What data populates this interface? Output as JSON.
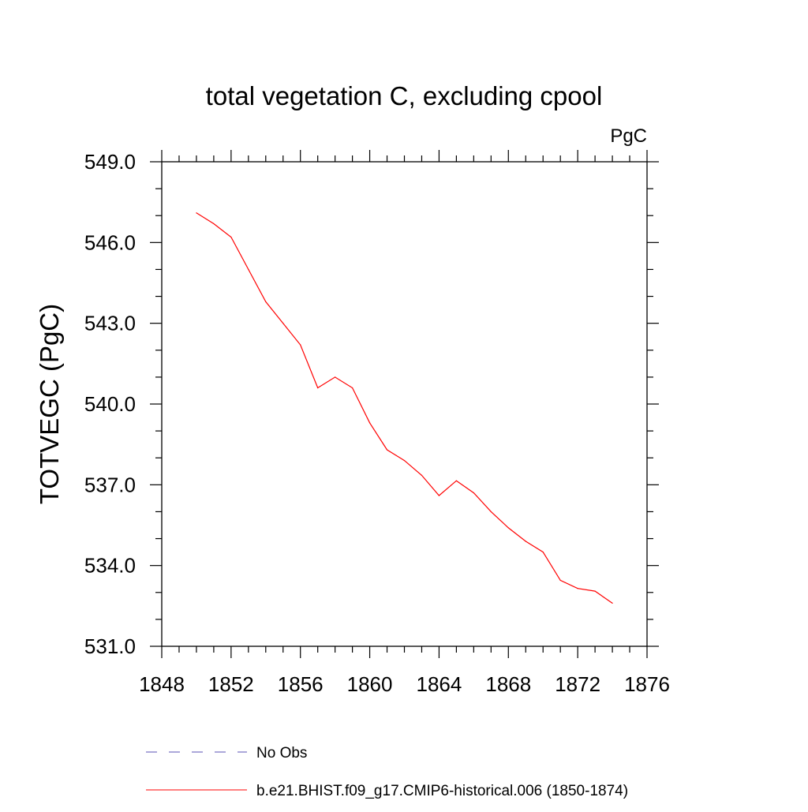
{
  "chart_data": {
    "type": "line",
    "title": "total vegetation C, excluding cpool",
    "units": "PgC",
    "ylabel": "TOTVEGC  (PgC)",
    "xlabel": "",
    "xlim": [
      1848,
      1876
    ],
    "ylim": [
      531.0,
      549.0
    ],
    "x_ticks": [
      1848,
      1852,
      1856,
      1860,
      1864,
      1868,
      1872,
      1876
    ],
    "x_tick_labels": [
      "1848",
      "1852",
      "1856",
      "1860",
      "1864",
      "1868",
      "1872",
      "1876"
    ],
    "y_ticks": [
      531.0,
      534.0,
      537.0,
      540.0,
      543.0,
      546.0,
      549.0
    ],
    "y_tick_labels": [
      "531.0",
      "534.0",
      "537.0",
      "540.0",
      "543.0",
      "546.0",
      "549.0"
    ],
    "grid": false,
    "legend_position": "bottom",
    "series": [
      {
        "name": "No Obs",
        "color": "#5a50b4",
        "style": "dashed",
        "x": [],
        "values": []
      },
      {
        "name": "b.e21.BHIST.f09_g17.CMIP6-historical.006 (1850-1874)",
        "color": "#ff0000",
        "style": "solid",
        "x": [
          1850,
          1851,
          1852,
          1853,
          1854,
          1855,
          1856,
          1857,
          1858,
          1859,
          1860,
          1861,
          1862,
          1863,
          1864,
          1865,
          1866,
          1867,
          1868,
          1869,
          1870,
          1871,
          1872,
          1873,
          1874
        ],
        "values": [
          547.1,
          546.7,
          546.2,
          545.0,
          543.8,
          543.0,
          542.2,
          540.6,
          541.0,
          540.6,
          539.3,
          538.3,
          537.9,
          537.35,
          536.6,
          537.15,
          536.7,
          536.0,
          535.4,
          534.9,
          534.5,
          533.45,
          533.15,
          533.05,
          532.6
        ]
      }
    ]
  }
}
